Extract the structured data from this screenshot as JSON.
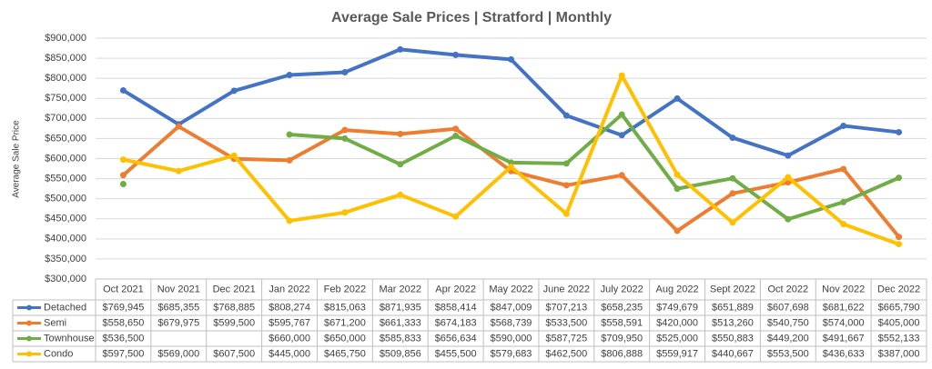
{
  "chart_data": {
    "type": "line",
    "title": "Average Sale Prices | Stratford |  Monthly",
    "y_label": "Average Sale Price",
    "categories": [
      "Oct 2021",
      "Nov 2021",
      "Dec 2021",
      "Jan 2022",
      "Feb 2022",
      "Mar 2022",
      "Apr 2022",
      "May 2022",
      "June 2022",
      "July 2022",
      "Aug 2022",
      "Sept 2022",
      "Oct 2022",
      "Nov 2022",
      "Dec 2022"
    ],
    "ylim": [
      300000,
      900000
    ],
    "yticks": [
      {
        "value": 300000,
        "label": "$300,000"
      },
      {
        "value": 350000,
        "label": "$350,000"
      },
      {
        "value": 400000,
        "label": "$400,000"
      },
      {
        "value": 450000,
        "label": "$450,000"
      },
      {
        "value": 500000,
        "label": "$500,000"
      },
      {
        "value": 550000,
        "label": "$550,000"
      },
      {
        "value": 600000,
        "label": "$600,000"
      },
      {
        "value": 650000,
        "label": "$650,000"
      },
      {
        "value": 700000,
        "label": "$700,000"
      },
      {
        "value": 750000,
        "label": "$750,000"
      },
      {
        "value": 800000,
        "label": "$800,000"
      },
      {
        "value": 850000,
        "label": "$850,000"
      },
      {
        "value": 900000,
        "label": "$900,000"
      }
    ],
    "grid": true,
    "series": [
      {
        "name": "Detached",
        "color": "#4472c4",
        "values": [
          769945,
          685355,
          768885,
          808274,
          815063,
          871935,
          858414,
          847009,
          707213,
          658235,
          749679,
          651889,
          607698,
          681622,
          665790
        ],
        "value_labels": [
          "$769,945",
          "$685,355",
          "$768,885",
          "$808,274",
          "$815,063",
          "$871,935",
          "$858,414",
          "$847,009",
          "$707,213",
          "$658,235",
          "$749,679",
          "$651,889",
          "$607,698",
          "$681,622",
          "$665,790"
        ]
      },
      {
        "name": "Semi",
        "color": "#ed7d31",
        "values": [
          558650,
          679975,
          599500,
          595767,
          671200,
          661333,
          674183,
          568739,
          533500,
          558591,
          420000,
          513260,
          540750,
          574000,
          405000
        ],
        "value_labels": [
          "$558,650",
          "$679,975",
          "$599,500",
          "$595,767",
          "$671,200",
          "$661,333",
          "$674,183",
          "$568,739",
          "$533,500",
          "$558,591",
          "$420,000",
          "$513,260",
          "$540,750",
          "$574,000",
          "$405,000"
        ]
      },
      {
        "name": "Townhouse",
        "color": "#70ad47",
        "values": [
          536500,
          null,
          null,
          660000,
          650000,
          585833,
          656634,
          590000,
          587725,
          709950,
          525000,
          550883,
          449200,
          491667,
          552133
        ],
        "value_labels": [
          "$536,500",
          null,
          null,
          "$660,000",
          "$650,000",
          "$585,833",
          "$656,634",
          "$590,000",
          "$587,725",
          "$709,950",
          "$525,000",
          "$550,883",
          "$449,200",
          "$491,667",
          "$552,133"
        ]
      },
      {
        "name": "Condo",
        "color": "#ffc000",
        "values": [
          597500,
          569000,
          607500,
          445000,
          465750,
          509856,
          455500,
          579683,
          462500,
          806888,
          559917,
          440667,
          553500,
          436633,
          387000
        ],
        "value_labels": [
          "$597,500",
          "$569,000",
          "$607,500",
          "$445,000",
          "$465,750",
          "$509,856",
          "$455,500",
          "$579,683",
          "$462,500",
          "$806,888",
          "$559,917",
          "$440,667",
          "$553,500",
          "$436,633",
          "$387,000"
        ]
      }
    ]
  }
}
